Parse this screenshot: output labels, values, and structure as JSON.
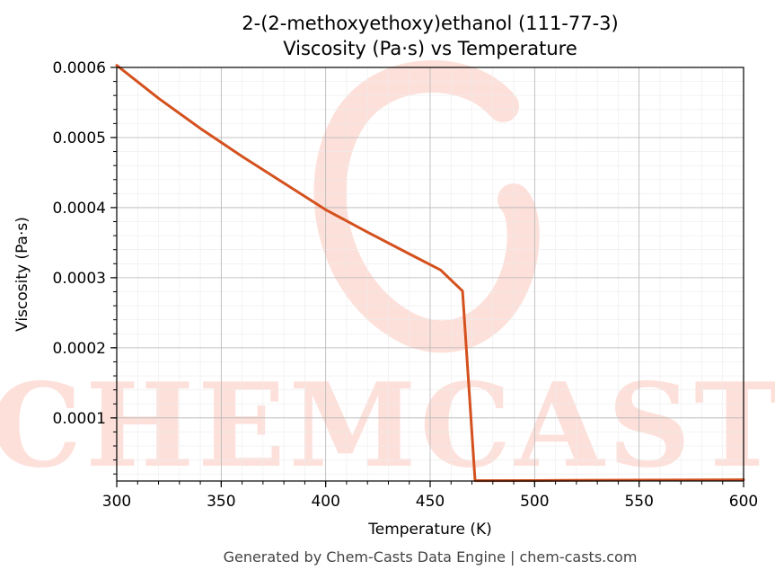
{
  "chart_data": {
    "type": "line",
    "title": "2-(2-methoxyethoxy)ethanol (111-77-3)",
    "subtitle": "Viscosity (Pa·s) vs Temperature",
    "xlabel": "Temperature (K)",
    "ylabel": "Viscosity (Pa·s)",
    "xlim": [
      300,
      600
    ],
    "ylim": [
      1e-05,
      0.0006
    ],
    "x_ticks": [
      300,
      350,
      400,
      450,
      500,
      550,
      600
    ],
    "y_ticks": [
      0.0001,
      0.0002,
      0.0003,
      0.0004,
      0.0005,
      0.0006
    ],
    "x_tick_labels": [
      "300",
      "350",
      "400",
      "450",
      "500",
      "550",
      "600"
    ],
    "y_tick_labels": [
      "0.0001",
      "0.0002",
      "0.0003",
      "0.0004",
      "0.0005",
      "0.0006"
    ],
    "grid": true,
    "series": [
      {
        "color": "#d4511e",
        "x": [
          300,
          320,
          340,
          360,
          380,
          400,
          420,
          440,
          455,
          465.5,
          471.5,
          500,
          550,
          600
        ],
        "y": [
          0.000603,
          0.000556,
          0.000513,
          0.000473,
          0.000435,
          0.000397,
          0.000365,
          0.000334,
          0.000311,
          0.000281,
          1.05e-05,
          1.07e-05,
          1.13e-05,
          1.18e-05
        ]
      }
    ]
  },
  "watermark": {
    "text": "CHEMCASTS",
    "color": "#fde0da"
  },
  "footer": {
    "text": "Generated by Chem-Casts Data Engine | chem-casts.com"
  }
}
